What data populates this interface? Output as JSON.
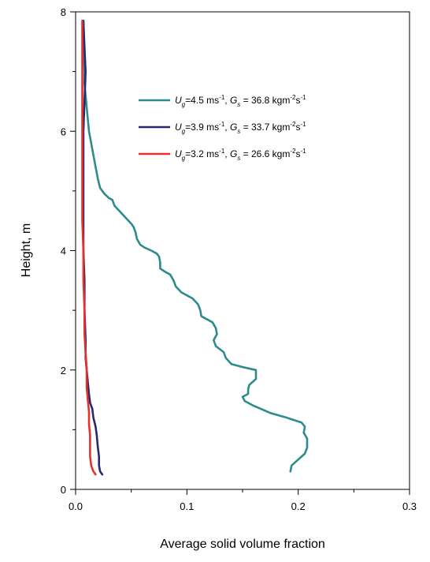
{
  "chart_data": {
    "type": "line",
    "xlabel": "Average solid volume fraction",
    "ylabel": "Height, m",
    "xlim": [
      0,
      0.3
    ],
    "ylim": [
      0,
      8
    ],
    "x_ticks": [
      "0.0",
      "0.1",
      "0.2",
      "0.3"
    ],
    "y_ticks": [
      "0",
      "2",
      "4",
      "6",
      "8"
    ],
    "grid": false,
    "legend_position": "upper-right",
    "series": [
      {
        "legend": {
          "u_sym": "U",
          "u_sub": "g",
          "u_text": "=4.5 ms",
          "u_sup": "-1",
          "sep": ", ",
          "g_sym": "G",
          "g_sub": "s",
          "g_text": " = 36.8 kgm",
          "g_sup1": "-2",
          "g_mid": "s",
          "g_sup2": "-1"
        },
        "color": "#2e8b8b",
        "points": [
          [
            0.193,
            0.3
          ],
          [
            0.194,
            0.4
          ],
          [
            0.2,
            0.5
          ],
          [
            0.206,
            0.6
          ],
          [
            0.208,
            0.7
          ],
          [
            0.208,
            0.85
          ],
          [
            0.205,
            0.95
          ],
          [
            0.206,
            1.05
          ],
          [
            0.203,
            1.12
          ],
          [
            0.19,
            1.2
          ],
          [
            0.175,
            1.28
          ],
          [
            0.16,
            1.4
          ],
          [
            0.152,
            1.48
          ],
          [
            0.15,
            1.55
          ],
          [
            0.155,
            1.6
          ],
          [
            0.155,
            1.68
          ],
          [
            0.156,
            1.75
          ],
          [
            0.162,
            1.85
          ],
          [
            0.162,
            2.0
          ],
          [
            0.15,
            2.05
          ],
          [
            0.14,
            2.1
          ],
          [
            0.135,
            2.2
          ],
          [
            0.133,
            2.3
          ],
          [
            0.126,
            2.4
          ],
          [
            0.124,
            2.5
          ],
          [
            0.127,
            2.6
          ],
          [
            0.126,
            2.7
          ],
          [
            0.123,
            2.8
          ],
          [
            0.113,
            2.9
          ],
          [
            0.112,
            3.0
          ],
          [
            0.11,
            3.1
          ],
          [
            0.105,
            3.2
          ],
          [
            0.1,
            3.25
          ],
          [
            0.095,
            3.3
          ],
          [
            0.09,
            3.4
          ],
          [
            0.088,
            3.5
          ],
          [
            0.085,
            3.6
          ],
          [
            0.08,
            3.65
          ],
          [
            0.076,
            3.7
          ],
          [
            0.076,
            3.8
          ],
          [
            0.075,
            3.9
          ],
          [
            0.073,
            3.95
          ],
          [
            0.068,
            4.0
          ],
          [
            0.062,
            4.05
          ],
          [
            0.058,
            4.1
          ],
          [
            0.055,
            4.2
          ],
          [
            0.054,
            4.3
          ],
          [
            0.052,
            4.4
          ],
          [
            0.05,
            4.45
          ],
          [
            0.045,
            4.55
          ],
          [
            0.04,
            4.65
          ],
          [
            0.035,
            4.75
          ],
          [
            0.033,
            4.85
          ],
          [
            0.03,
            4.88
          ],
          [
            0.026,
            4.95
          ],
          [
            0.022,
            5.05
          ],
          [
            0.02,
            5.2
          ],
          [
            0.018,
            5.4
          ],
          [
            0.016,
            5.6
          ],
          [
            0.014,
            5.8
          ],
          [
            0.012,
            6.0
          ],
          [
            0.011,
            6.2
          ],
          [
            0.01,
            6.4
          ],
          [
            0.009,
            6.6
          ],
          [
            0.008,
            6.8
          ],
          [
            0.008,
            7.0
          ],
          [
            0.007,
            7.3
          ],
          [
            0.007,
            7.6
          ],
          [
            0.007,
            7.85
          ]
        ]
      },
      {
        "legend": {
          "u_sym": "U",
          "u_sub": "g",
          "u_text": "=3.9 ms",
          "u_sup": "-1",
          "sep": ", ",
          "g_sym": "G",
          "g_sub": "s",
          "g_text": " = 33.7 kgm",
          "g_sup1": "-2",
          "g_mid": "s",
          "g_sup2": "-1"
        },
        "color": "#28286e",
        "points": [
          [
            0.024,
            0.25
          ],
          [
            0.022,
            0.3
          ],
          [
            0.021,
            0.4
          ],
          [
            0.021,
            0.55
          ],
          [
            0.02,
            0.7
          ],
          [
            0.019,
            0.9
          ],
          [
            0.018,
            1.05
          ],
          [
            0.016,
            1.2
          ],
          [
            0.015,
            1.35
          ],
          [
            0.013,
            1.45
          ],
          [
            0.012,
            1.6
          ],
          [
            0.011,
            1.8
          ],
          [
            0.01,
            2.0
          ],
          [
            0.009,
            2.2
          ],
          [
            0.009,
            2.5
          ],
          [
            0.008,
            3.0
          ],
          [
            0.008,
            3.5
          ],
          [
            0.007,
            4.0
          ],
          [
            0.007,
            4.5
          ],
          [
            0.007,
            5.0
          ],
          [
            0.007,
            5.5
          ],
          [
            0.007,
            6.0
          ],
          [
            0.008,
            6.5
          ],
          [
            0.009,
            7.0
          ],
          [
            0.008,
            7.4
          ],
          [
            0.007,
            7.85
          ]
        ]
      },
      {
        "legend": {
          "u_sym": "U",
          "u_sub": "g",
          "u_text": "=3.2 ms",
          "u_sup": "-1",
          "sep": ", ",
          "g_sym": "G",
          "g_sub": "s",
          "g_text": " = 26.6 kgm",
          "g_sup1": "-2",
          "g_mid": "s",
          "g_sup2": "-1"
        },
        "color": "#e8302a",
        "points": [
          [
            0.018,
            0.25
          ],
          [
            0.016,
            0.3
          ],
          [
            0.014,
            0.4
          ],
          [
            0.013,
            0.55
          ],
          [
            0.013,
            0.7
          ],
          [
            0.013,
            0.9
          ],
          [
            0.012,
            1.1
          ],
          [
            0.012,
            1.3
          ],
          [
            0.011,
            1.5
          ],
          [
            0.01,
            1.7
          ],
          [
            0.01,
            2.0
          ],
          [
            0.009,
            2.3
          ],
          [
            0.008,
            2.6
          ],
          [
            0.008,
            3.0
          ],
          [
            0.007,
            3.5
          ],
          [
            0.007,
            4.0
          ],
          [
            0.006,
            4.5
          ],
          [
            0.006,
            5.0
          ],
          [
            0.006,
            5.5
          ],
          [
            0.006,
            6.0
          ],
          [
            0.006,
            6.5
          ],
          [
            0.006,
            7.0
          ],
          [
            0.006,
            7.5
          ],
          [
            0.006,
            7.85
          ]
        ]
      }
    ]
  }
}
